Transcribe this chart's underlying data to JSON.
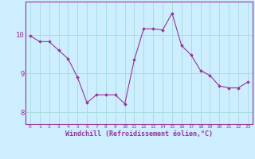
{
  "x": [
    0,
    1,
    2,
    3,
    4,
    5,
    6,
    7,
    8,
    9,
    10,
    11,
    12,
    13,
    14,
    15,
    16,
    17,
    18,
    19,
    20,
    21,
    22,
    23
  ],
  "y": [
    9.97,
    9.82,
    9.82,
    9.6,
    9.38,
    8.9,
    8.25,
    8.45,
    8.45,
    8.45,
    8.22,
    9.35,
    10.15,
    10.15,
    10.12,
    10.55,
    9.72,
    9.48,
    9.08,
    8.95,
    8.68,
    8.63,
    8.63,
    8.78
  ],
  "line_color": "#993399",
  "marker": "D",
  "marker_size": 1.8,
  "bg_color": "#cceeff",
  "grid_color": "#aadddd",
  "xlabel": "Windchill (Refroidissement éolien,°C)",
  "xlabel_color": "#993399",
  "tick_color": "#993399",
  "spine_color": "#993399",
  "ytick_labels": [
    "8",
    "9",
    "10"
  ],
  "ytick_vals": [
    8,
    9,
    10
  ],
  "ylim": [
    7.7,
    10.85
  ],
  "xlim": [
    -0.5,
    23.5
  ],
  "xtick_vals": [
    0,
    1,
    2,
    3,
    4,
    5,
    6,
    7,
    8,
    9,
    10,
    11,
    12,
    13,
    14,
    15,
    16,
    17,
    18,
    19,
    20,
    21,
    22,
    23
  ]
}
